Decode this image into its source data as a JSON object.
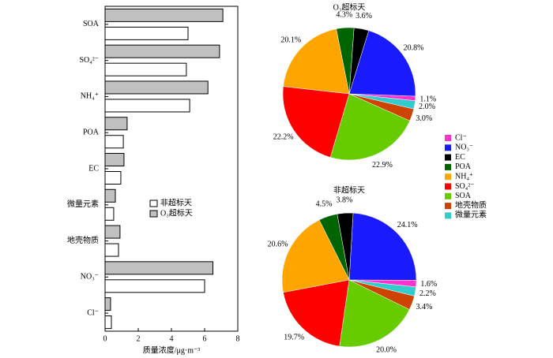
{
  "chart_data": [
    {
      "type": "bar",
      "orientation": "horizontal",
      "xlabel": "质量浓度/μg·m⁻³",
      "categories": [
        "SOA",
        "SO₄²⁻",
        "NH₄⁺",
        "POA",
        "EC",
        "微量元素",
        "地壳物质",
        "NO₃⁻",
        "Cl⁻"
      ],
      "series": [
        {
          "name": "非超标天",
          "color": "#ffffff",
          "values": [
            5.0,
            4.9,
            5.1,
            1.1,
            0.95,
            0.52,
            0.81,
            6.0,
            0.38
          ]
        },
        {
          "name": "O₃超标天",
          "color": "#c0c0c0",
          "values": [
            7.1,
            6.9,
            6.2,
            1.33,
            1.14,
            0.62,
            0.9,
            6.5,
            0.33
          ]
        }
      ],
      "xlim": [
        0,
        8
      ],
      "xticks": [
        0,
        2,
        4,
        6,
        8
      ]
    },
    {
      "type": "pie",
      "categories": [
        "Cl⁻",
        "NO₃⁻",
        "EC",
        "POA",
        "NH₄⁺",
        "SO₄²⁻",
        "SOA",
        "地壳物质",
        "微量元素"
      ],
      "colors": [
        "#ff33cc",
        "#1a1aff",
        "#000000",
        "#006400",
        "#ffa500",
        "#ff0000",
        "#66cc00",
        "#cc4400",
        "#33cccc"
      ],
      "series": [
        {
          "name": "O₃超标天",
          "values": [
            1.1,
            20.8,
            3.6,
            4.3,
            20.1,
            22.2,
            22.9,
            3.0,
            2.0
          ],
          "value_labels": [
            "1.1%",
            "20.8%",
            "3.6%",
            "4.3%",
            "20.1%",
            "22.2%",
            "22.9%",
            "3.0%",
            "2.0%"
          ]
        },
        {
          "name": "非超标天",
          "values": [
            1.6,
            24.1,
            3.8,
            4.5,
            20.6,
            19.7,
            20.0,
            3.4,
            2.2
          ],
          "value_labels": [
            "1.6%",
            "24.1%",
            "3.8%",
            "4.5%",
            "20.6%",
            "19.7%",
            "20.0%",
            "3.4%",
            "2.2%"
          ]
        }
      ]
    }
  ]
}
